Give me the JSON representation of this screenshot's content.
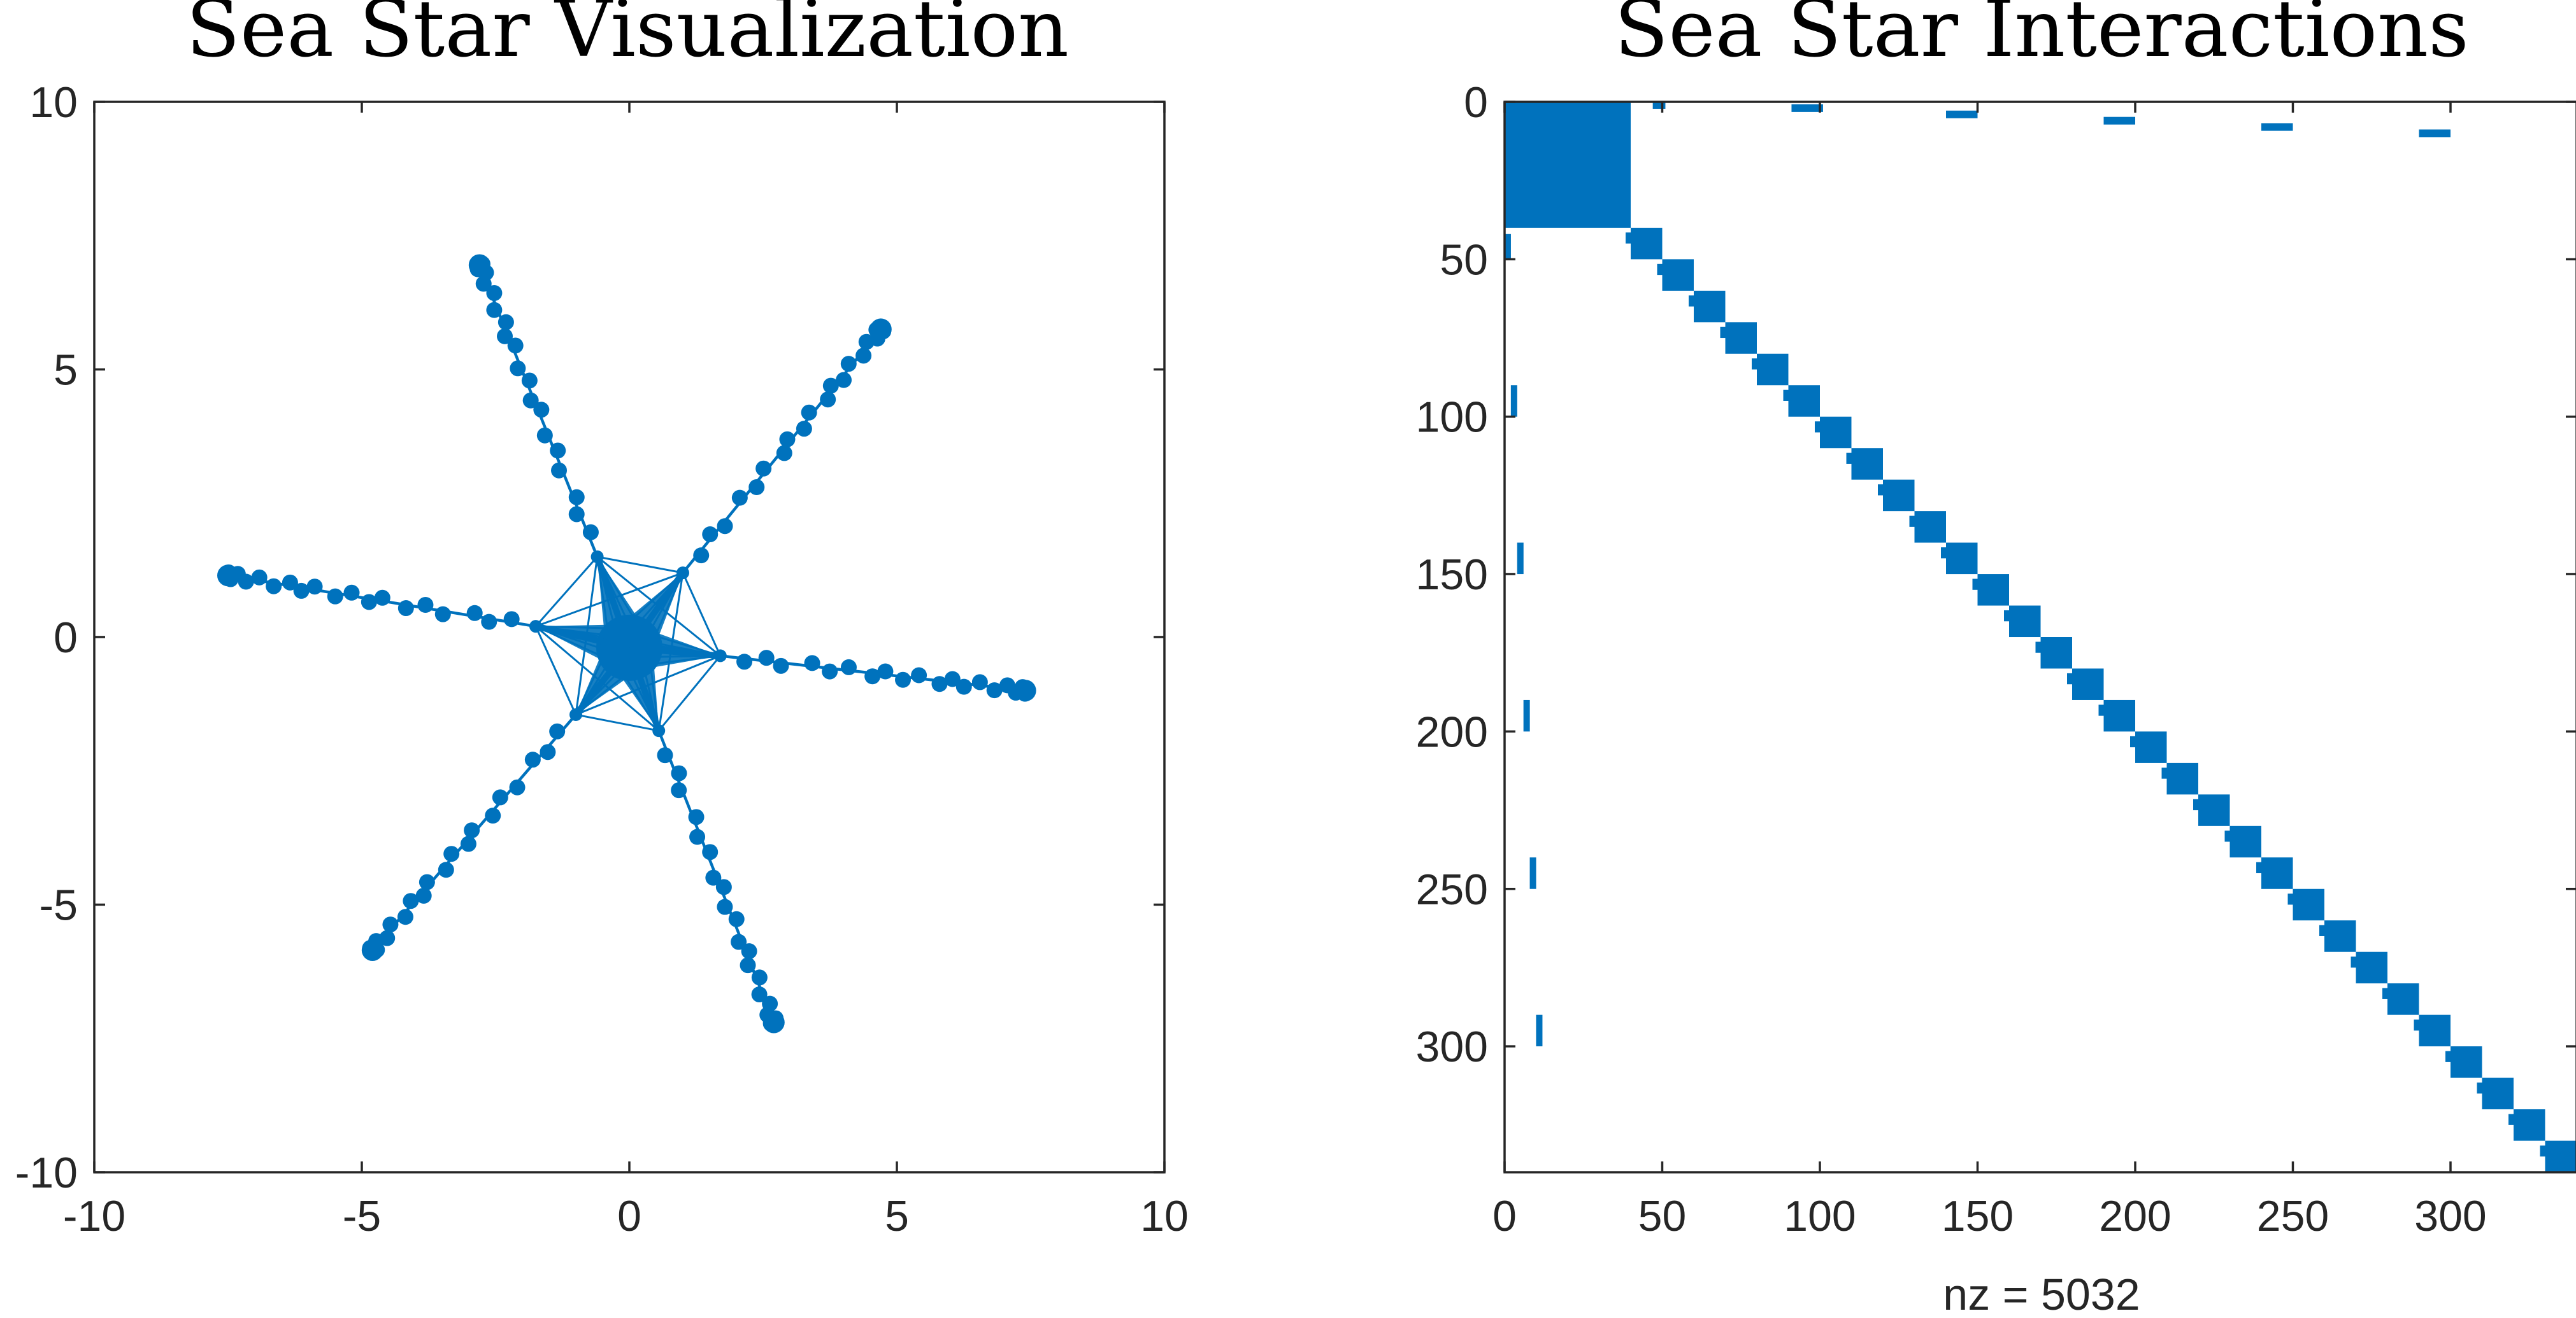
{
  "chart_data": [
    {
      "type": "scatter",
      "title": "Sea Star Visualization",
      "xlim": [
        -10,
        10
      ],
      "ylim": [
        -10,
        10
      ],
      "xticks": [
        "-10",
        "-5",
        "0",
        "5",
        "10"
      ],
      "yticks": [
        "10",
        "5",
        "0",
        "-5",
        "-10"
      ],
      "grid": false,
      "color": "#0072BD",
      "center": {
        "x": 0,
        "y": -0.2
      },
      "hub_nodes": [
        {
          "x": -0.6,
          "y": 1.5
        },
        {
          "x": 1.0,
          "y": 1.2
        },
        {
          "x": 1.7,
          "y": -0.35
        },
        {
          "x": 0.55,
          "y": -1.75
        },
        {
          "x": -1.0,
          "y": -1.45
        },
        {
          "x": -1.75,
          "y": 0.2
        }
      ],
      "arms": [
        {
          "start": {
            "x": -0.6,
            "y": 1.5
          },
          "tip": {
            "x": -2.8,
            "y": 6.95
          }
        },
        {
          "start": {
            "x": 1.0,
            "y": 1.2
          },
          "tip": {
            "x": 4.7,
            "y": 5.75
          }
        },
        {
          "start": {
            "x": 1.7,
            "y": -0.35
          },
          "tip": {
            "x": 7.4,
            "y": -1.0
          }
        },
        {
          "start": {
            "x": 0.55,
            "y": -1.75
          },
          "tip": {
            "x": 2.7,
            "y": -7.2
          }
        },
        {
          "start": {
            "x": -1.0,
            "y": -1.45
          },
          "tip": {
            "x": -4.8,
            "y": -5.85
          }
        },
        {
          "start": {
            "x": -1.75,
            "y": 0.2
          },
          "tip": {
            "x": -7.5,
            "y": 1.15
          }
        }
      ],
      "arm_point_fractions": [
        0.08,
        0.15,
        0.2,
        0.3,
        0.36,
        0.42,
        0.5,
        0.54,
        0.6,
        0.65,
        0.72,
        0.76,
        0.8,
        0.85,
        0.9,
        0.94,
        0.97,
        0.99,
        1.0
      ]
    },
    {
      "type": "heatmap",
      "title": "Sea Star Interactions",
      "xlabel": "nz = 5032",
      "xlim": [
        0,
        340
      ],
      "ylim": [
        0,
        340
      ],
      "y_reversed": true,
      "xticks": [
        0,
        50,
        100,
        150,
        200,
        250,
        300
      ],
      "yticks": [
        0,
        50,
        100,
        150,
        200,
        250,
        300
      ],
      "grid": false,
      "color": "#0072BD",
      "dense_block": {
        "row_start": 0,
        "row_end": 40,
        "col_start": 0,
        "col_end": 40
      },
      "diagonal_blocks": [
        {
          "start": 40,
          "size": 10
        },
        {
          "start": 50,
          "size": 10
        },
        {
          "start": 60,
          "size": 10
        },
        {
          "start": 70,
          "size": 10
        },
        {
          "start": 80,
          "size": 10
        },
        {
          "start": 90,
          "size": 10
        },
        {
          "start": 100,
          "size": 10
        },
        {
          "start": 110,
          "size": 10
        },
        {
          "start": 120,
          "size": 10
        },
        {
          "start": 130,
          "size": 10
        },
        {
          "start": 140,
          "size": 10
        },
        {
          "start": 150,
          "size": 10
        },
        {
          "start": 160,
          "size": 10
        },
        {
          "start": 170,
          "size": 10
        },
        {
          "start": 180,
          "size": 10
        },
        {
          "start": 190,
          "size": 10
        },
        {
          "start": 200,
          "size": 10
        },
        {
          "start": 210,
          "size": 10
        },
        {
          "start": 220,
          "size": 10
        },
        {
          "start": 230,
          "size": 10
        },
        {
          "start": 240,
          "size": 10
        },
        {
          "start": 250,
          "size": 10
        },
        {
          "start": 260,
          "size": 10
        },
        {
          "start": 270,
          "size": 10
        },
        {
          "start": 280,
          "size": 10
        },
        {
          "start": 290,
          "size": 10
        },
        {
          "start": 300,
          "size": 10
        },
        {
          "start": 310,
          "size": 10
        },
        {
          "start": 320,
          "size": 10
        },
        {
          "start": 330,
          "size": 10
        }
      ],
      "off_diagonal_row_segments": [
        {
          "row": 1,
          "col_start": 47,
          "col_end": 51
        },
        {
          "row": 2,
          "col_start": 91,
          "col_end": 101
        },
        {
          "row": 4,
          "col_start": 140,
          "col_end": 150
        },
        {
          "row": 6,
          "col_start": 190,
          "col_end": 200
        },
        {
          "row": 8,
          "col_start": 240,
          "col_end": 250
        },
        {
          "row": 10,
          "col_start": 290,
          "col_end": 300
        }
      ],
      "off_diagonal_col_segments": [
        {
          "col": 1,
          "row_start": 42,
          "row_end": 50
        },
        {
          "col": 3,
          "row_start": 90,
          "row_end": 100
        },
        {
          "col": 5,
          "row_start": 140,
          "row_end": 150
        },
        {
          "col": 7,
          "row_start": 190,
          "row_end": 200
        },
        {
          "col": 9,
          "row_start": 240,
          "row_end": 250
        },
        {
          "col": 11,
          "row_start": 290,
          "row_end": 300
        }
      ]
    }
  ]
}
